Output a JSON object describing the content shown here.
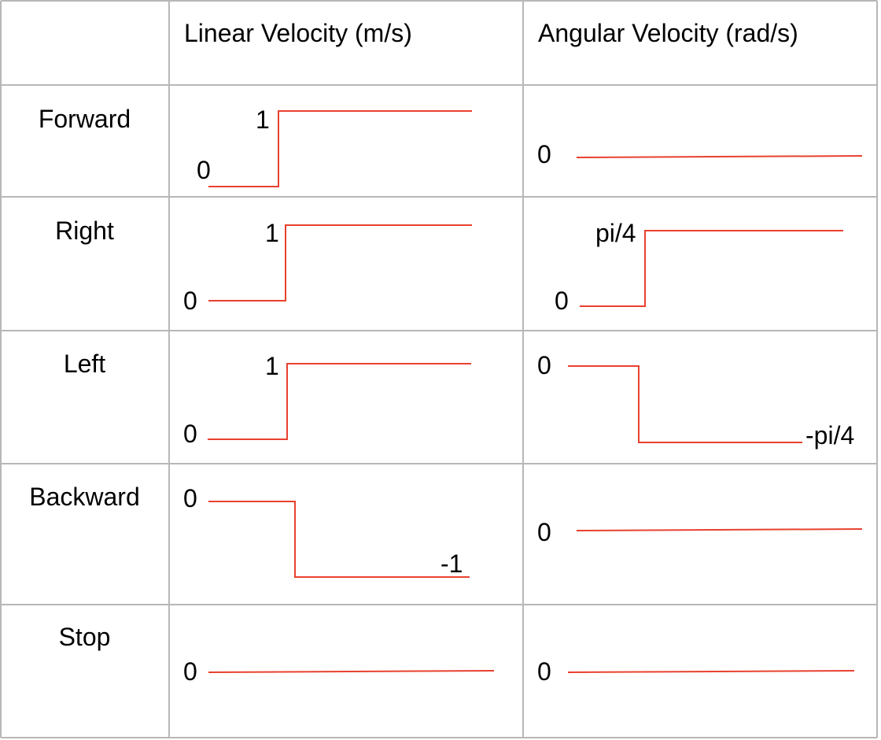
{
  "headers": {
    "corner": "",
    "linear": "Linear Velocity (m/s)",
    "angular": "Angular Velocity (rad/s)"
  },
  "colors": {
    "grid": "#b7b7b7",
    "signal": "#e8412f",
    "text": "#000000"
  },
  "rows": [
    {
      "label": "Forward",
      "linear": {
        "kind": "step-up",
        "low": "0",
        "high": "1"
      },
      "angular": {
        "kind": "flat",
        "value": "0"
      }
    },
    {
      "label": "Right",
      "linear": {
        "kind": "step-up",
        "low": "0",
        "high": "1"
      },
      "angular": {
        "kind": "step-up",
        "low": "0",
        "high": "pi/4"
      }
    },
    {
      "label": "Left",
      "linear": {
        "kind": "step-up",
        "low": "0",
        "high": "1"
      },
      "angular": {
        "kind": "step-down",
        "start": "0",
        "end": "-pi/4"
      }
    },
    {
      "label": "Backward",
      "linear": {
        "kind": "step-down",
        "start": "0",
        "end": "-1"
      },
      "angular": {
        "kind": "flat",
        "value": "0"
      }
    },
    {
      "label": "Stop",
      "linear": {
        "kind": "flat",
        "value": "0"
      },
      "angular": {
        "kind": "flat",
        "value": "0"
      }
    }
  ]
}
